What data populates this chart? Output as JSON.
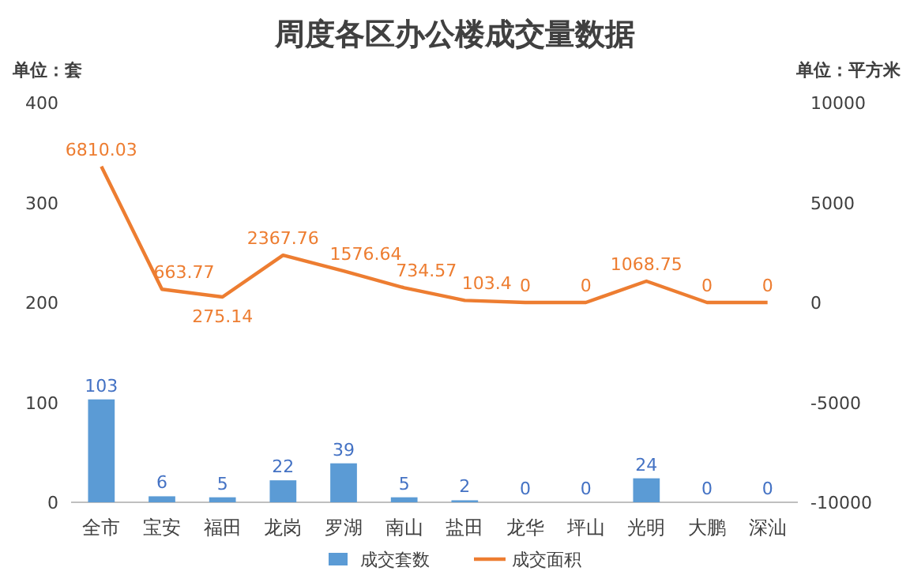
{
  "chart_data": {
    "type": "bar",
    "title": "周度各区办公楼成交量数据",
    "ylabel": "单位：套",
    "y2label": "单位：平方米",
    "categories": [
      "全市",
      "宝安",
      "福田",
      "龙岗",
      "罗湖",
      "南山",
      "盐田",
      "龙华",
      "坪山",
      "光明",
      "大鹏",
      "深汕"
    ],
    "series": [
      {
        "name": "成交套数",
        "color": "#5b9bd5",
        "values": [
          103,
          6,
          5,
          22,
          39,
          5,
          2,
          0,
          0,
          24,
          0,
          0
        ]
      },
      {
        "name": "成交面积",
        "type": "line",
        "axis": "y2",
        "color": "#ed7d31",
        "values": [
          6810.03,
          663.77,
          275.14,
          2367.76,
          1576.64,
          734.57,
          103.4,
          0,
          0,
          1068.75,
          0,
          0
        ]
      }
    ],
    "ylim": [
      0,
      400
    ],
    "yticks": [
      0,
      100,
      200,
      300,
      400
    ],
    "y2lim": [
      -10000,
      10000
    ],
    "y2ticks": [
      -10000,
      -5000,
      0,
      5000,
      10000
    ],
    "data_labels": true,
    "grid": false,
    "legend": "bottom",
    "marker": "none",
    "line_style": "solid"
  }
}
